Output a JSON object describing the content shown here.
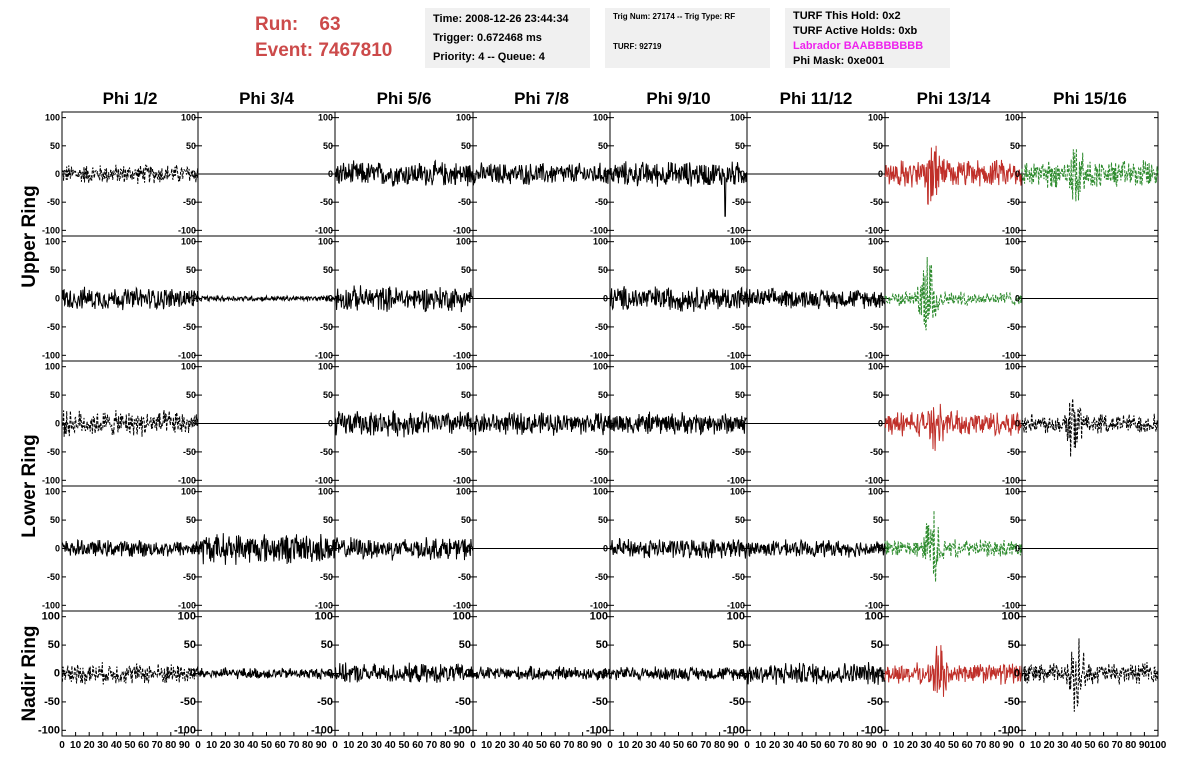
{
  "header": {
    "run_label": "Run:",
    "run_value": "63",
    "event_label": "Event:",
    "event_value": "7467810"
  },
  "info_box_1": {
    "time": "Time: 2008-12-26 23:44:34",
    "trigger": "Trigger: 0.672468 ms",
    "priority": "Priority: 4 -- Queue: 4"
  },
  "info_box_2": {
    "trig": "Trig Num: 27174 -- Trig Type: RF",
    "turf": "TURF: 92719"
  },
  "info_box_3": {
    "hold": "TURF This Hold: 0x2",
    "active": "TURF Active Holds: 0xb",
    "labrador": "Labrador BAABBBBBBB",
    "labrador_color": "#ee22ee",
    "phimask": "Phi Mask: 0xe001"
  },
  "chart_data": {
    "type": "line",
    "columns": [
      "Phi 1/2",
      "Phi 3/4",
      "Phi 5/6",
      "Phi 7/8",
      "Phi 9/10",
      "Phi 11/12",
      "Phi 13/14",
      "Phi 15/16"
    ],
    "ring_labels": [
      {
        "name": "Upper Ring",
        "rows": [
          0,
          1
        ]
      },
      {
        "name": "Lower Ring",
        "rows": [
          2,
          3
        ]
      },
      {
        "name": "Nadir Ring",
        "rows": [
          4
        ]
      }
    ],
    "xlim": [
      0,
      100
    ],
    "ylim": [
      -110,
      110
    ],
    "y_ticks": [
      100,
      50,
      0,
      -50,
      -100
    ],
    "y_tick_labels": [
      "100",
      "50",
      "0",
      "-50",
      "-100"
    ],
    "x_tick_labels": [
      "0",
      "10",
      "20",
      "30",
      "40",
      "50",
      "60",
      "70",
      "80",
      "90",
      "100"
    ],
    "colors": {
      "black": "#000000",
      "red": "#c0302a",
      "green": "#2e8b2e"
    },
    "grid": false,
    "traces": [
      [
        {
          "style": "dashed",
          "color": "black",
          "amp": 14
        },
        {
          "style": "flat",
          "color": "black",
          "amp": 0
        },
        {
          "style": "solid",
          "color": "black",
          "amp": 18
        },
        {
          "style": "solid",
          "color": "black",
          "amp": 16
        },
        {
          "style": "solid",
          "color": "black",
          "amp": 18,
          "spike_x": 84,
          "spike_y": -75
        },
        {
          "style": "flat",
          "color": "black",
          "amp": 0
        },
        {
          "style": "solid",
          "color": "red",
          "amp": 20,
          "burst_x": 35,
          "burst_amp": 60
        },
        {
          "style": "dashed",
          "color": "green",
          "amp": 20,
          "burst_x": 40,
          "burst_amp": 55
        }
      ],
      [
        {
          "style": "solid",
          "color": "black",
          "amp": 16
        },
        {
          "style": "solid",
          "color": "black",
          "amp": 4
        },
        {
          "style": "solid",
          "color": "black",
          "amp": 18
        },
        {
          "style": "flat",
          "color": "black",
          "amp": 0
        },
        {
          "style": "solid",
          "color": "black",
          "amp": 18
        },
        {
          "style": "solid",
          "color": "black",
          "amp": 14
        },
        {
          "style": "dashed",
          "color": "green",
          "amp": 10,
          "burst_x": 32,
          "burst_amp": 85
        },
        {
          "style": "flat",
          "color": "black",
          "amp": 0
        }
      ],
      [
        {
          "style": "dashed",
          "color": "black",
          "amp": 18
        },
        {
          "style": "flat",
          "color": "black",
          "amp": 0
        },
        {
          "style": "solid",
          "color": "black",
          "amp": 18
        },
        {
          "style": "solid",
          "color": "black",
          "amp": 16
        },
        {
          "style": "solid",
          "color": "black",
          "amp": 16
        },
        {
          "style": "flat",
          "color": "black",
          "amp": 0
        },
        {
          "style": "solid",
          "color": "red",
          "amp": 18,
          "burst_x": 38,
          "burst_amp": 45
        },
        {
          "style": "dashed",
          "color": "black",
          "amp": 14,
          "burst_x": 38,
          "burst_amp": 60
        }
      ],
      [
        {
          "style": "solid",
          "color": "black",
          "amp": 12
        },
        {
          "style": "solid",
          "color": "black",
          "amp": 22
        },
        {
          "style": "solid",
          "color": "black",
          "amp": 16
        },
        {
          "style": "flat",
          "color": "black",
          "amp": 0
        },
        {
          "style": "solid",
          "color": "black",
          "amp": 14
        },
        {
          "style": "solid",
          "color": "black",
          "amp": 12
        },
        {
          "style": "dashed",
          "color": "green",
          "amp": 12,
          "burst_x": 35,
          "burst_amp": 70
        },
        {
          "style": "flat",
          "color": "black",
          "amp": 0
        }
      ],
      [
        {
          "style": "dashed",
          "color": "black",
          "amp": 15
        },
        {
          "style": "solid",
          "color": "black",
          "amp": 8
        },
        {
          "style": "solid",
          "color": "black",
          "amp": 14
        },
        {
          "style": "solid",
          "color": "black",
          "amp": 10
        },
        {
          "style": "solid",
          "color": "black",
          "amp": 10
        },
        {
          "style": "solid",
          "color": "black",
          "amp": 16
        },
        {
          "style": "solid",
          "color": "red",
          "amp": 15,
          "burst_x": 40,
          "burst_amp": 50
        },
        {
          "style": "dashed",
          "color": "black",
          "amp": 15,
          "burst_x": 40,
          "burst_amp": 70
        }
      ]
    ]
  }
}
